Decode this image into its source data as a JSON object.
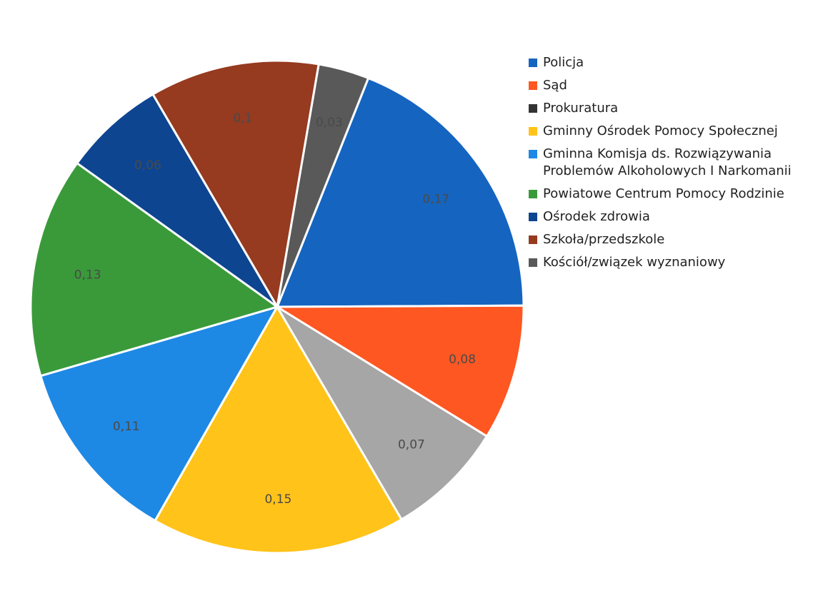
{
  "chart_data": {
    "type": "pie",
    "title": "",
    "categories": [
      "Policja",
      "Sąd",
      "Prokuratura",
      "Gminny Ośrodek Pomocy Społecznej",
      "Gminna Komisja ds. Rozwiązywania Problemów Alkoholowych I Narkomanii",
      "Powiatowe Centrum Pomocy Rodzinie",
      "Ośrodek zdrowia",
      "Szkoła/przedszkole",
      "Kościół/związek wyznaniowy"
    ],
    "slices": [
      {
        "label": "Policja",
        "value": 0.17,
        "display": "0,17",
        "color": "#1565C0"
      },
      {
        "label": "Kościół/związek wyznaniowy",
        "value": 0.03,
        "display": "0,03",
        "color": "#595959"
      },
      {
        "label": "Szkoła/przedszkole",
        "value": 0.1,
        "display": "0,1",
        "color": "#963A20"
      },
      {
        "label": "Ośrodek zdrowia",
        "value": 0.06,
        "display": "0,06",
        "color": "#0D4591"
      },
      {
        "label": "Powiatowe Centrum Pomocy Rodzinie",
        "value": 0.13,
        "display": "0,13",
        "color": "#3A9A3A"
      },
      {
        "label": "Gminna Komisja ds. Rozwiązywania Problemów Alkoholowych I Narkomanii",
        "value": 0.11,
        "display": "0,11",
        "color": "#1E88E5"
      },
      {
        "label": "Gminny Ośrodek Pomocy Społecznej",
        "value": 0.15,
        "display": "0,15",
        "color": "#FFC31A"
      },
      {
        "label": "Prokuratura",
        "value": 0.07,
        "display": "0,07",
        "color": "#A6A6A6"
      },
      {
        "label": "Sąd",
        "value": 0.08,
        "display": "0,08",
        "color": "#FF5722"
      }
    ],
    "legend": {
      "position": "right",
      "items": [
        {
          "label": "Policja",
          "color": "#1565C0"
        },
        {
          "label": "Sąd",
          "color": "#FF5722"
        },
        {
          "label": "Prokuratura",
          "color": "#333333"
        },
        {
          "label": "Gminny Ośrodek Pomocy Społecznej",
          "color": "#FFC31A"
        },
        {
          "label": "Gminna Komisja ds. Rozwiązywania Problemów Alkoholowych I Narkomanii",
          "color": "#1E88E5"
        },
        {
          "label": "Powiatowe Centrum Pomocy Rodzinie",
          "color": "#3A9A3A"
        },
        {
          "label": "Ośrodek zdrowia",
          "color": "#0D4591"
        },
        {
          "label": "Szkoła/przedszkole",
          "color": "#963A20"
        },
        {
          "label": "Kościół/związek wyznaniowy",
          "color": "#595959"
        }
      ]
    }
  }
}
